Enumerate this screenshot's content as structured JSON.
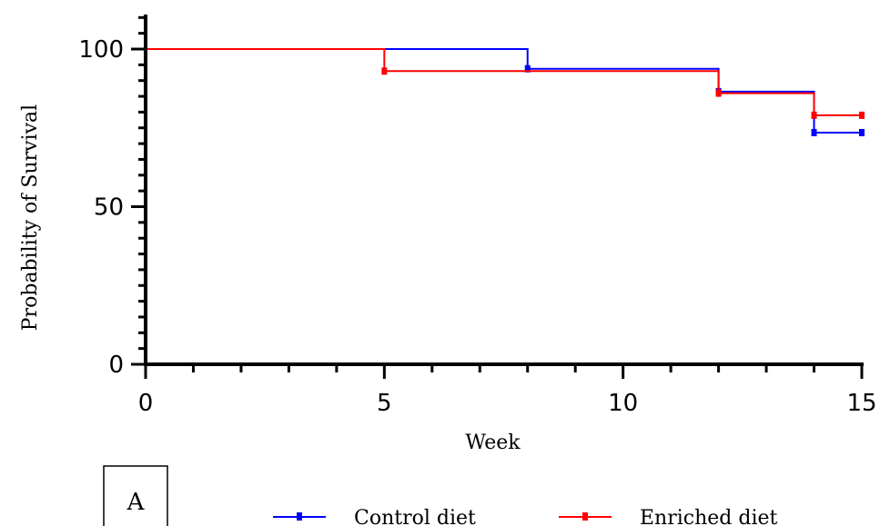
{
  "chart_data": {
    "type": "line",
    "subtype": "step",
    "xlabel": "Week",
    "ylabel": "Probability of Survival",
    "xlim": [
      0,
      15
    ],
    "ylim": [
      0,
      100
    ],
    "x_ticks": [
      0,
      5,
      10,
      15
    ],
    "y_ticks": [
      0,
      50,
      100
    ],
    "x_minor_step": 1,
    "y_minor_step": 5,
    "grid": false,
    "legend_position": "bottom",
    "series": [
      {
        "name": "Control diet",
        "color": "#0000ff",
        "steps": [
          {
            "x": 0,
            "y": 100
          },
          {
            "x": 8,
            "y": 93.75
          },
          {
            "x": 12,
            "y": 86.5
          },
          {
            "x": 14,
            "y": 73.5
          },
          {
            "x": 15,
            "y": 73.5
          }
        ],
        "censored": [
          {
            "x": 8,
            "y": 93.75
          },
          {
            "x": 12,
            "y": 86.5
          },
          {
            "x": 14,
            "y": 73.5
          },
          {
            "x": 15,
            "y": 73.5
          }
        ]
      },
      {
        "name": "Enriched diet",
        "color": "#ff0000",
        "steps": [
          {
            "x": 0,
            "y": 100
          },
          {
            "x": 5,
            "y": 93
          },
          {
            "x": 12,
            "y": 86
          },
          {
            "x": 14,
            "y": 79
          },
          {
            "x": 15,
            "y": 79
          }
        ],
        "censored": [
          {
            "x": 5,
            "y": 93
          },
          {
            "x": 12,
            "y": 86
          },
          {
            "x": 14,
            "y": 79
          },
          {
            "x": 15,
            "y": 79
          }
        ]
      }
    ]
  },
  "panel_label": "A"
}
